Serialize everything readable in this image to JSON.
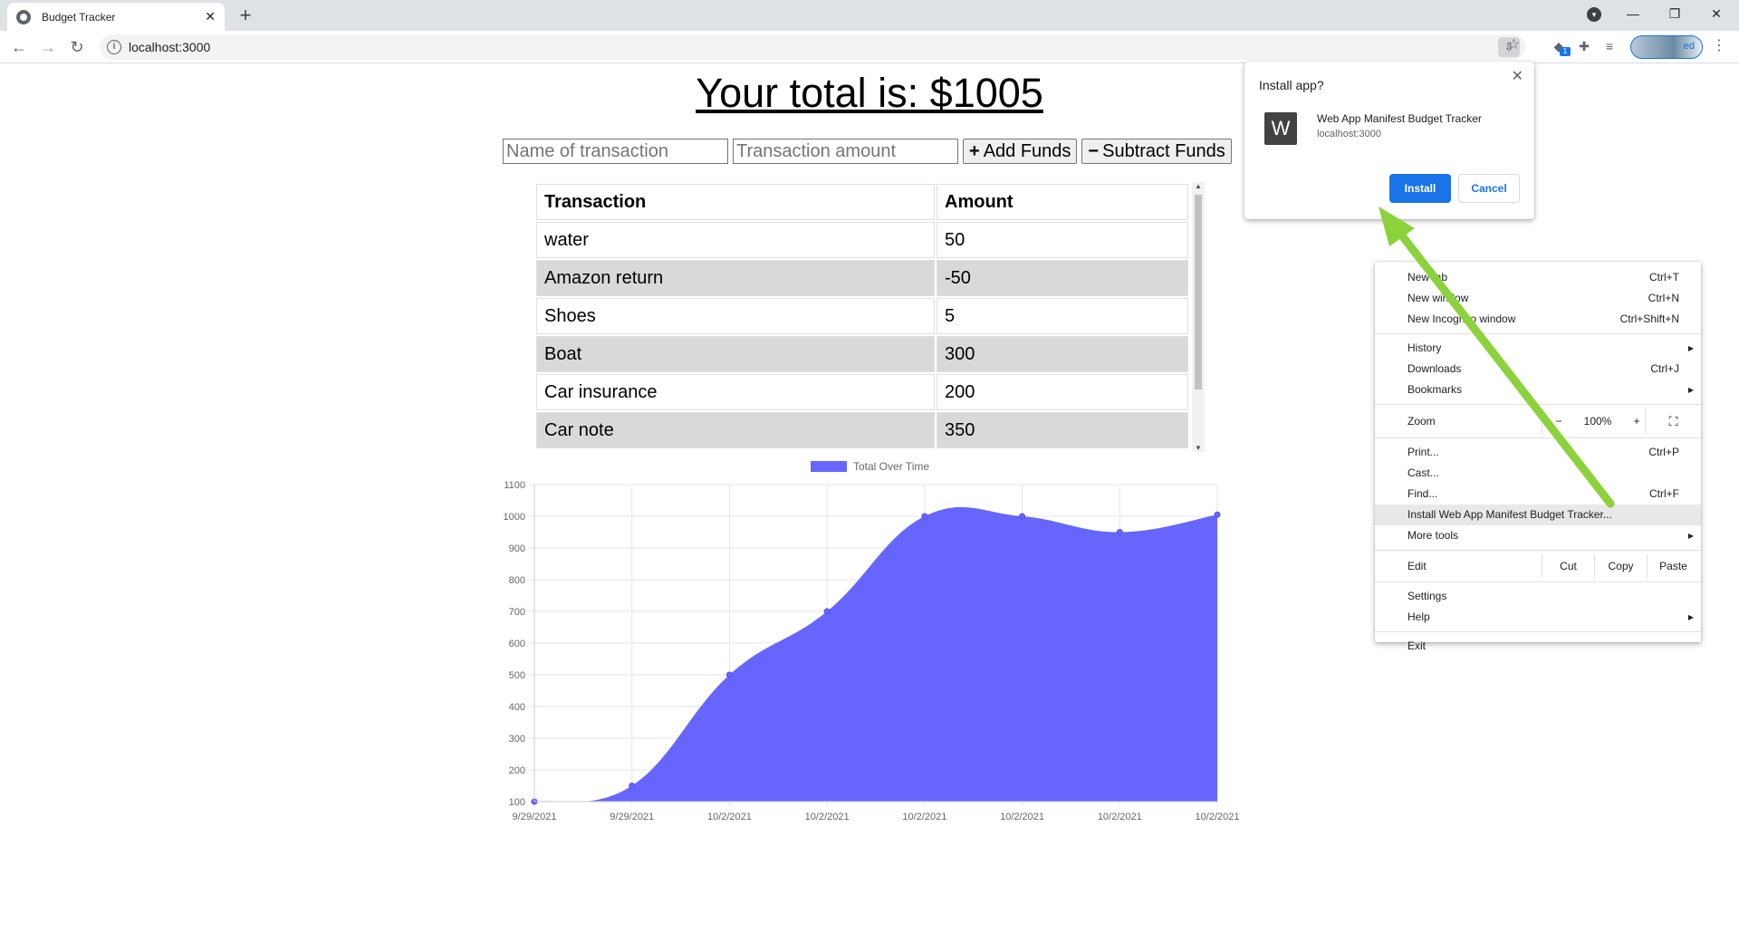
{
  "browser": {
    "tab_title": "Budget Tracker",
    "url": "localhost:3000",
    "profile_label": "ed"
  },
  "page": {
    "total_text": "Your total is: $1005",
    "form": {
      "name_placeholder": "Name of transaction",
      "amount_placeholder": "Transaction amount",
      "add_label": "Add Funds",
      "subtract_label": "Subtract Funds",
      "add_symbol": "+",
      "subtract_symbol": "−"
    },
    "table": {
      "headers": [
        "Transaction",
        "Amount"
      ],
      "rows": [
        [
          "water",
          "50"
        ],
        [
          "Amazon return",
          "-50"
        ],
        [
          "Shoes",
          "5"
        ],
        [
          "Boat",
          "300"
        ],
        [
          "Car insurance",
          "200"
        ],
        [
          "Car note",
          "350"
        ]
      ]
    }
  },
  "chart_data": {
    "type": "area",
    "legend": "Total Over Time",
    "x": [
      "9/29/2021",
      "9/29/2021",
      "10/2/2021",
      "10/2/2021",
      "10/2/2021",
      "10/2/2021",
      "10/2/2021",
      "10/2/2021"
    ],
    "values": [
      100,
      150,
      500,
      700,
      1000,
      1000,
      950,
      1005
    ],
    "ylim": [
      100,
      1100
    ],
    "yticks": [
      "1100",
      "1000",
      "900",
      "800",
      "700",
      "600",
      "500",
      "400",
      "300",
      "200",
      "100"
    ],
    "grid": true,
    "color": "#6666ff"
  },
  "install_dialog": {
    "title": "Install app?",
    "app_icon_letter": "W",
    "app_name": "Web App Manifest Budget Tracker",
    "app_origin": "localhost:3000",
    "install_label": "Install",
    "cancel_label": "Cancel",
    "accent": "#1a73e8"
  },
  "menu": {
    "new_tab": "New tab",
    "new_tab_sc": "Ctrl+T",
    "new_window": "New window",
    "new_window_sc": "Ctrl+N",
    "incognito": "New Incognito window",
    "incognito_sc": "Ctrl+Shift+N",
    "history": "History",
    "downloads": "Downloads",
    "downloads_sc": "Ctrl+J",
    "bookmarks": "Bookmarks",
    "zoom": "Zoom",
    "zoom_minus": "−",
    "zoom_value": "100%",
    "zoom_plus": "+",
    "print": "Print...",
    "print_sc": "Ctrl+P",
    "cast": "Cast...",
    "find": "Find...",
    "find_sc": "Ctrl+F",
    "install": "Install Web App Manifest Budget Tracker...",
    "more_tools": "More tools",
    "edit": "Edit",
    "cut": "Cut",
    "copy": "Copy",
    "paste": "Paste",
    "settings": "Settings",
    "help": "Help",
    "exit": "Exit"
  },
  "annotation": {
    "arrow_color": "#8cd23c"
  }
}
